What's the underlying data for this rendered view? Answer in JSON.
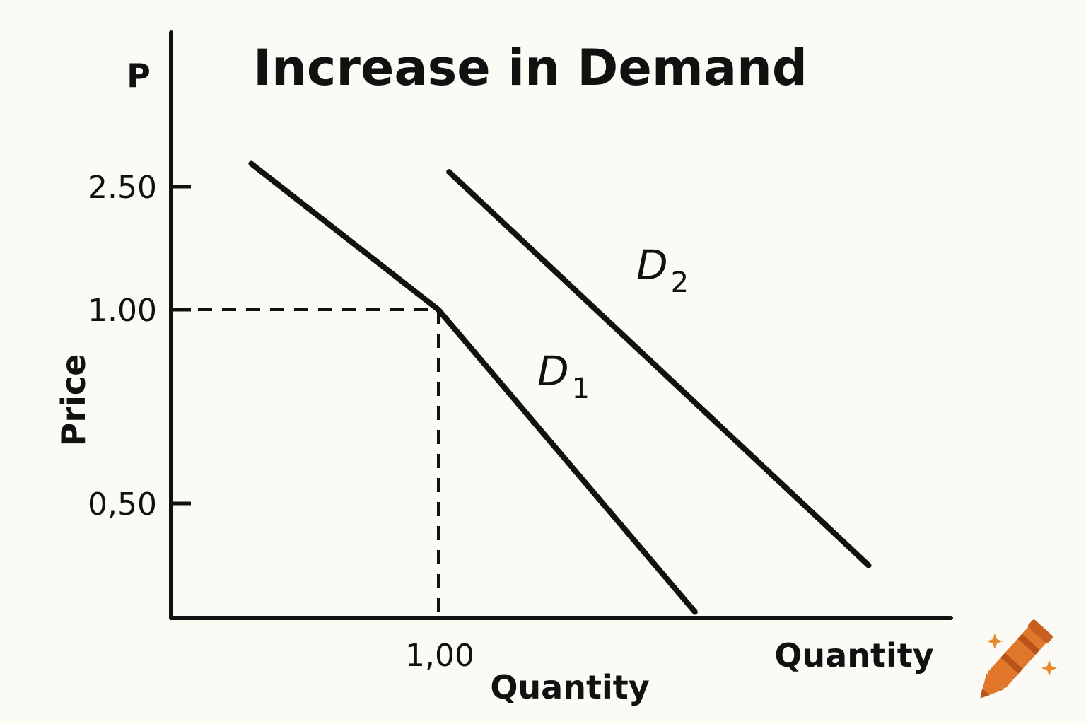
{
  "chart_data": {
    "type": "line",
    "title": "Increase in Demand",
    "y_axis_letter": "P",
    "ylabel": "Price",
    "xlabel_center": "Quantity",
    "xlabel_end": "Quantity",
    "y_ticks": [
      {
        "value": 2.5,
        "label": "2.50"
      },
      {
        "value": 1.0,
        "label": "1.00"
      },
      {
        "value": 0.5,
        "label": "0,50"
      }
    ],
    "x_ticks": [
      {
        "value": 1.0,
        "label": "1,00"
      }
    ],
    "reference_point": {
      "x": 1.0,
      "y": 1.0
    },
    "series": [
      {
        "name_main": "D",
        "name_sub": "1",
        "points": [
          [
            0.3,
            2.78
          ],
          [
            1.0,
            1.0
          ],
          [
            1.96,
            0.22
          ]
        ]
      },
      {
        "name_main": "D",
        "name_sub": "2",
        "points": [
          [
            1.04,
            2.68
          ],
          [
            2.61,
            0.34
          ]
        ]
      }
    ],
    "grid": false,
    "legend": "none"
  },
  "colors": {
    "background": "#fbfaf5",
    "ink": "#111111",
    "crayon": "#e0772a",
    "crayon_dark": "#b8541a",
    "sparkle": "#e8892e"
  },
  "icons": {
    "logo": "crayon-icon"
  }
}
